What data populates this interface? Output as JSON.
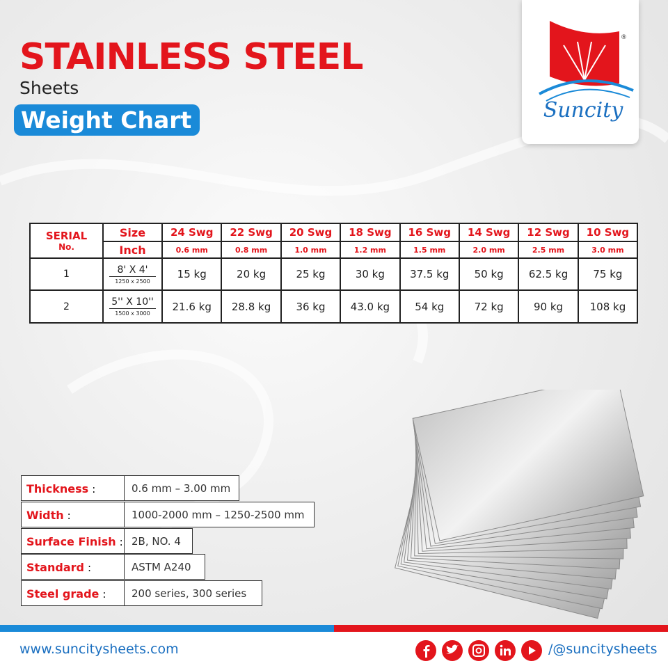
{
  "header": {
    "title": "STAINLESS STEEL",
    "subtitle": "Sheets",
    "badge": "Weight Chart"
  },
  "logo": {
    "name": "Suncity",
    "mark": "®"
  },
  "weight_table": {
    "serial_header": [
      "SERIAL",
      "No."
    ],
    "size_header": [
      "Size",
      "Inch"
    ],
    "gauges": [
      {
        "swg": "24 Swg",
        "mm": "0.6 mm"
      },
      {
        "swg": "22 Swg",
        "mm": "0.8 mm"
      },
      {
        "swg": "20 Swg",
        "mm": "1.0 mm"
      },
      {
        "swg": "18 Swg",
        "mm": "1.2 mm"
      },
      {
        "swg": "16 Swg",
        "mm": "1.5 mm"
      },
      {
        "swg": "14 Swg",
        "mm": "2.0 mm"
      },
      {
        "swg": "12 Swg",
        "mm": "2.5 mm"
      },
      {
        "swg": "10 Swg",
        "mm": "3.0 mm"
      }
    ],
    "rows": [
      {
        "serial": "1",
        "size": "8' X 4'",
        "size_mm": "1250 x 2500",
        "weights": [
          "15 kg",
          "20 kg",
          "25 kg",
          "30 kg",
          "37.5 kg",
          "50 kg",
          "62.5 kg",
          "75 kg"
        ]
      },
      {
        "serial": "2",
        "size": "5'' X 10''",
        "size_mm": "1500 x 3000",
        "weights": [
          "21.6 kg",
          "28.8 kg",
          "36 kg",
          "43.0 kg",
          "54 kg",
          "72 kg",
          "90 kg",
          "108 kg"
        ]
      }
    ]
  },
  "specs": {
    "separator": ":",
    "items": [
      {
        "label": "Thickness",
        "value": "0.6 mm – 3.00 mm"
      },
      {
        "label": "Width",
        "value": "1000-2000 mm – 1250-2500 mm"
      },
      {
        "label": "Surface Finish",
        "value": "2B, NO. 4"
      },
      {
        "label": "Standard",
        "value": "ASTM A240"
      },
      {
        "label": "Steel grade",
        "value": "200 series, 300 series"
      }
    ]
  },
  "footer": {
    "website": "www.suncitysheets.com",
    "handle": "/@suncitysheets"
  }
}
